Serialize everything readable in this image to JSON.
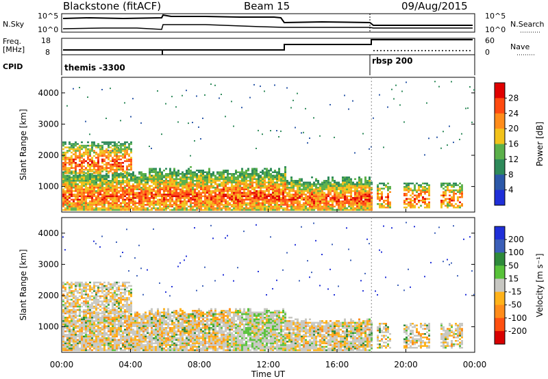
{
  "header": {
    "title": "Blackstone (fitACF)",
    "beam": "Beam 15",
    "date": "09/Aug/2015"
  },
  "top_panels": {
    "nsky_label": "N.Sky",
    "nsky_ticks": [
      "10^5",
      "10^0"
    ],
    "nsearch_label": "N.Search",
    "nsearch_ticks": [
      "10^5",
      "10^0"
    ],
    "freq_label_1": "Freq.",
    "freq_label_2": "[MHz]",
    "freq_ticks": [
      "18",
      "8"
    ],
    "nave_label": "Nave",
    "nave_ticks": [
      "60",
      "0"
    ],
    "cpid_label": "CPID",
    "cpid_segments": [
      {
        "label": "themis -3300",
        "start_hour": 0,
        "end_hour": 18
      },
      {
        "label": "rbsp 200",
        "start_hour": 18,
        "end_hour": 24
      }
    ]
  },
  "chart_data": [
    {
      "type": "heatmap",
      "name": "power",
      "ylabel": "Slant Range [km]",
      "yticks": [
        1000,
        2000,
        3000,
        4000
      ],
      "ylim": [
        180,
        4500
      ],
      "colorbar_label": "Power [dB]",
      "colorbar_ticks": [
        "4",
        "8",
        "12",
        "16",
        "20",
        "24",
        "28"
      ],
      "colorbar_colors": [
        "#1f2fd8",
        "#2c58a8",
        "#2e8a5a",
        "#5bb04a",
        "#f2c21a",
        "#ff8c1a",
        "#ff4a10",
        "#e00000"
      ]
    },
    {
      "type": "heatmap",
      "name": "velocity",
      "ylabel": "Slant Range [km]",
      "yticks": [
        1000,
        2000,
        3000,
        4000
      ],
      "ylim": [
        180,
        4500
      ],
      "colorbar_label": "Velocity [m s⁻¹]",
      "colorbar_ticks": [
        "200",
        "100",
        "50",
        "15",
        "-15",
        "-50",
        "-100",
        "-200"
      ],
      "colorbar_colors": [
        "#1f2fd8",
        "#3b5fb8",
        "#2e8a3a",
        "#58c23a",
        "#c7c7c2",
        "#ffb21a",
        "#ff8c1a",
        "#ff5010",
        "#d80000"
      ]
    }
  ],
  "time_axis": {
    "ticks": [
      "00:00",
      "04:00",
      "08:00",
      "12:00",
      "16:00",
      "20:00",
      "00:00"
    ],
    "xlabel": "Time UT"
  }
}
